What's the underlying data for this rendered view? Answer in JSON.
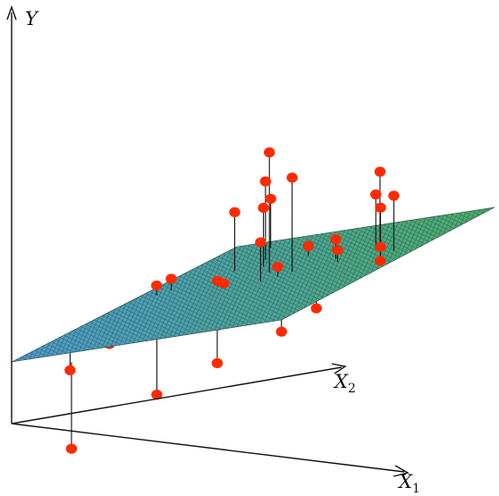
{
  "chart_data": {
    "type": "scatter",
    "title": "",
    "axes": {
      "y": {
        "label": "Y"
      },
      "x1": {
        "label": "X",
        "subscript": "1"
      },
      "x2": {
        "label": "X",
        "subscript": "2"
      }
    },
    "surface": {
      "kind": "regression-plane",
      "color_low": "#4d9bd0",
      "color_high": "#4cae6a"
    },
    "point_color": "#ff2a00",
    "points": [
      {
        "x1": 0.05,
        "x2": 0.2,
        "residual": -0.17
      },
      {
        "x1": 0.08,
        "x2": 0.55,
        "residual": 0.05
      },
      {
        "x1": 0.11,
        "x2": 0.58,
        "residual": 0.06
      },
      {
        "x1": 0.13,
        "x2": 0.38,
        "residual": -0.09
      },
      {
        "x1": 0.13,
        "x2": 0.28,
        "residual": -0.1
      },
      {
        "x1": 0.27,
        "x2": 0.42,
        "residual": -0.1
      },
      {
        "x1": 0.25,
        "x2": 0.7,
        "residual": 0.3
      },
      {
        "x1": 0.3,
        "x2": 0.78,
        "residual": 0.4
      },
      {
        "x1": 0.2,
        "x2": 0.92,
        "residual": 0.25
      },
      {
        "x1": 0.32,
        "x2": 0.54,
        "residual": 0.03
      },
      {
        "x1": 0.36,
        "x2": 0.7,
        "residual": 0.3
      },
      {
        "x1": 0.36,
        "x2": 0.52,
        "residual": 0.02
      },
      {
        "x1": 0.32,
        "x2": -0.12,
        "residual": -0.44
      },
      {
        "x1": 0.45,
        "x2": 0.62,
        "residual": 0.61
      },
      {
        "x1": 0.44,
        "x2": 0.12,
        "residual": -0.33
      },
      {
        "x1": 0.5,
        "x2": 0.52,
        "residual": 0.2
      },
      {
        "x1": 0.49,
        "x2": 0.75,
        "residual": 0.05
      },
      {
        "x1": 0.54,
        "x2": 0.55,
        "residual": -0.05
      },
      {
        "x1": 0.54,
        "x2": 0.55,
        "residual": 0.05
      },
      {
        "x1": 0.49,
        "x2": 0.3,
        "residual": -0.08
      },
      {
        "x1": 0.52,
        "x2": 0.3,
        "residual": -0.1
      },
      {
        "x1": 0.57,
        "x2": 0.58,
        "residual": 0.48
      },
      {
        "x1": 0.6,
        "x2": 0.48,
        "residual": -0.02
      },
      {
        "x1": 0.57,
        "x2": 0.38,
        "residual": -0.1
      },
      {
        "x1": 0.6,
        "x2": 0.2,
        "residual": -0.25
      },
      {
        "x1": 0.67,
        "x2": 0.66,
        "residual": 0.1
      },
      {
        "x1": 0.66,
        "x2": 0.38,
        "residual": -0.05
      },
      {
        "x1": 0.71,
        "x2": 0.62,
        "residual": 0.06
      },
      {
        "x1": 0.69,
        "x2": 0.3,
        "residual": -0.06
      },
      {
        "x1": 0.74,
        "x2": 0.78,
        "residual": 0.36
      },
      {
        "x1": 0.75,
        "x2": 0.54,
        "residual": -0.05
      },
      {
        "x1": 0.8,
        "x2": 0.3,
        "residual": -0.07
      },
      {
        "x1": 0.79,
        "x2": 0.7,
        "residual": 0.28
      },
      {
        "x1": 0.84,
        "x2": 0.58,
        "residual": -0.02
      },
      {
        "x1": 0.85,
        "x2": 0.35,
        "residual": -0.11
      },
      {
        "x1": 0.89,
        "x2": 0.6,
        "residual": 0.25
      },
      {
        "x1": 0.9,
        "x2": 0.65,
        "residual": 0.28
      },
      {
        "x1": 0.87,
        "x2": 0.4,
        "residual": -0.02
      },
      {
        "x1": 0.89,
        "x2": 0.6,
        "residual": 0.05
      },
      {
        "x1": 0.97,
        "x2": 0.5,
        "residual": 0.02
      },
      {
        "x1": 0.92,
        "x2": 0.1,
        "residual": -0.1
      }
    ]
  }
}
